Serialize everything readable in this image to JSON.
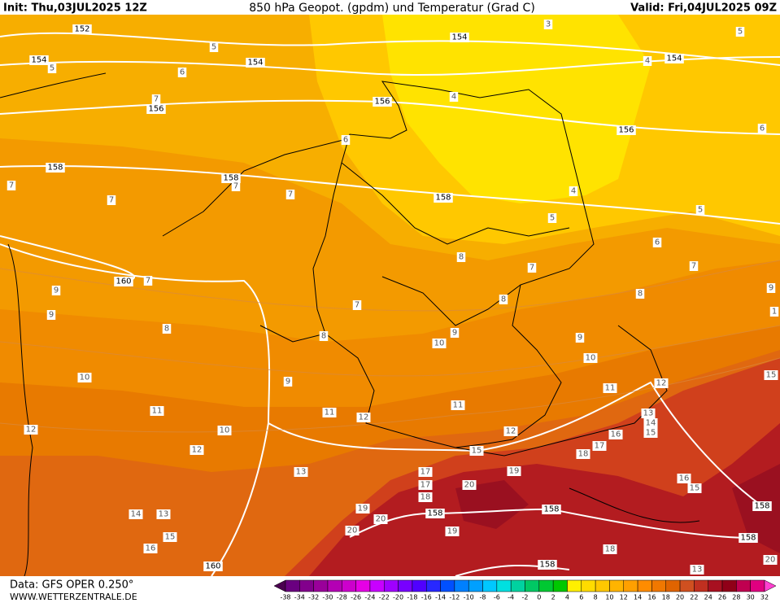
{
  "header": {
    "init": "Init: Thu,03JUL2025 12Z",
    "title": "850 hPa Geopot. (gpdm) und Temperatur (Grad C)",
    "valid": "Valid: Fri,04JUL2025 09Z"
  },
  "isohypse_labels": [
    152,
    154,
    154,
    154,
    154,
    156,
    156,
    156,
    158,
    158,
    158,
    160,
    160,
    158,
    158,
    158,
    158,
    158
  ],
  "temperature_labels": [
    5,
    5,
    6,
    7,
    7,
    7,
    7,
    7,
    7,
    5,
    5,
    4,
    4,
    6,
    6,
    7,
    7,
    8,
    8,
    8,
    9,
    9,
    9,
    8,
    7,
    8,
    9,
    10,
    9,
    10,
    10,
    9,
    11,
    11,
    12,
    11,
    11,
    12,
    12,
    12,
    10,
    12,
    13,
    14,
    15,
    16,
    17,
    18,
    15,
    13,
    17,
    17,
    18,
    19,
    20,
    19,
    20,
    14,
    13,
    15,
    16,
    16,
    15,
    20,
    19,
    18,
    20,
    3,
    5,
    4,
    6,
    15,
    13,
    1
  ],
  "legend": {
    "ticks": [
      -38,
      -34,
      -32,
      -30,
      -28,
      -26,
      -24,
      -22,
      -20,
      -18,
      -16,
      -14,
      -12,
      -10,
      -8,
      -6,
      -4,
      -2,
      0,
      2,
      4,
      6,
      8,
      10,
      12,
      14,
      16,
      18,
      20,
      22,
      24,
      26,
      28,
      30,
      32
    ],
    "colors": [
      "#4b0050",
      "#6a0080",
      "#82008c",
      "#9a009a",
      "#b400b4",
      "#cc00cc",
      "#e600e6",
      "#c800ff",
      "#a000ff",
      "#7800ff",
      "#5000ff",
      "#2828ff",
      "#0050ff",
      "#0080ff",
      "#00a0ff",
      "#00c8ff",
      "#00e0e0",
      "#00d2a0",
      "#00c864",
      "#00c832",
      "#00c800",
      "#fff000",
      "#ffdc00",
      "#ffc800",
      "#ffb400",
      "#ffa000",
      "#ff8c00",
      "#f07800",
      "#e06400",
      "#d05020",
      "#c03020",
      "#a81020",
      "#900018",
      "#c00050",
      "#e00080",
      "#ff40d0"
    ]
  },
  "footer": {
    "source": "Data: GFS OPER 0.250°",
    "site": "WWW.WETTERZENTRALE.DE"
  }
}
